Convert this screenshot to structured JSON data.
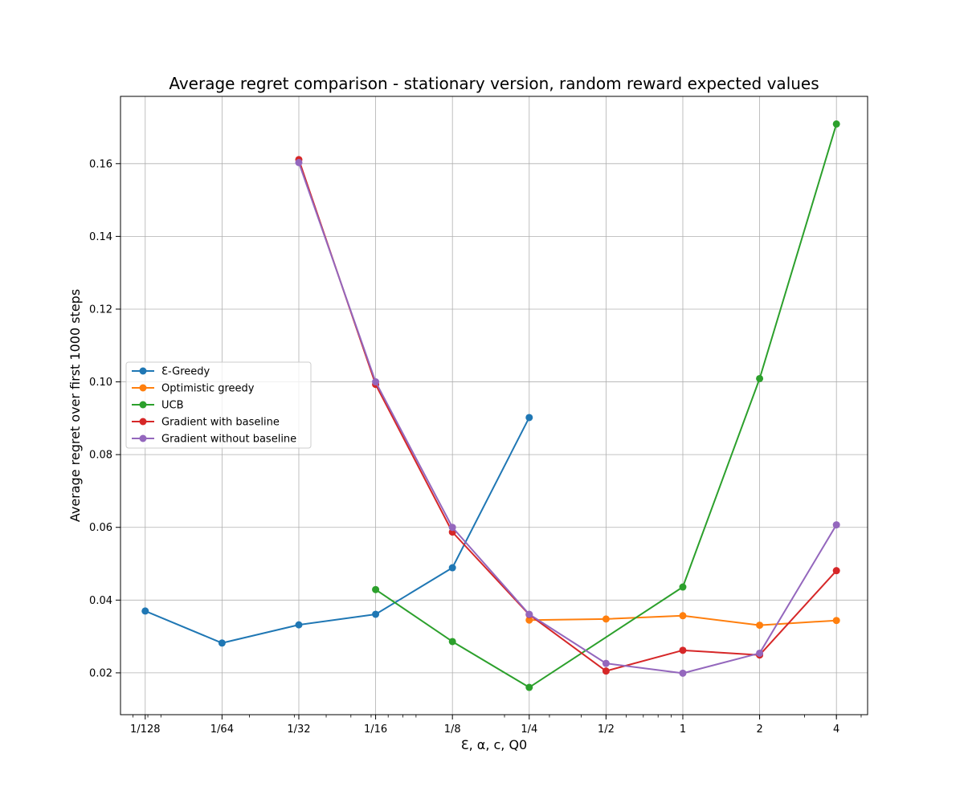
{
  "chart_data": {
    "type": "line",
    "title": "Average regret comparison - stationary version, random reward expected values",
    "xlabel": "Ɛ, α, c, Q0",
    "ylabel": "Average regret over first 1000 steps",
    "x_scale": "log2",
    "x": [
      0.0078125,
      0.015625,
      0.03125,
      0.0625,
      0.125,
      0.25,
      0.5,
      1,
      2,
      4
    ],
    "x_tick_labels": [
      "1/128",
      "1/64",
      "1/32",
      "1/16",
      "1/8",
      "1/4",
      "1/2",
      "1",
      "2",
      "4"
    ],
    "xlim": [
      0.00625,
      5.3
    ],
    "ylim": [
      0.0085,
      0.1785
    ],
    "y_ticks": [
      0.02,
      0.04,
      0.06,
      0.08,
      0.1,
      0.12,
      0.14,
      0.16
    ],
    "y_tick_labels": [
      "0.02",
      "0.04",
      "0.06",
      "0.08",
      "0.10",
      "0.12",
      "0.14",
      "0.16"
    ],
    "grid": true,
    "legend_position": "center-left",
    "series": [
      {
        "name": "Ɛ-Greedy",
        "color": "#1f77b4",
        "x": [
          0.0078125,
          0.015625,
          0.03125,
          0.0625,
          0.125,
          0.25
        ],
        "values": [
          0.037,
          0.0282,
          0.0332,
          0.0361,
          0.0489,
          0.0902
        ]
      },
      {
        "name": "Optimistic greedy",
        "color": "#ff7f0e",
        "x": [
          0.25,
          0.5,
          1,
          2,
          4
        ],
        "values": [
          0.0345,
          0.0348,
          0.0357,
          0.0331,
          0.0344
        ]
      },
      {
        "name": "UCB",
        "color": "#2ca02c",
        "x": [
          0.0625,
          0.125,
          0.25,
          1,
          2,
          4
        ],
        "values": [
          0.0429,
          0.0286,
          0.016,
          0.0436,
          0.1009,
          0.1709
        ]
      },
      {
        "name": "Gradient with baseline",
        "color": "#d62728",
        "x": [
          0.03125,
          0.0625,
          0.125,
          0.25,
          0.5,
          1,
          2,
          4
        ],
        "values": [
          0.1611,
          0.0993,
          0.0587,
          0.036,
          0.0205,
          0.0262,
          0.0249,
          0.0481
        ]
      },
      {
        "name": "Gradient without baseline",
        "color": "#9467bd",
        "x": [
          0.03125,
          0.0625,
          0.125,
          0.25,
          0.5,
          1,
          2,
          4
        ],
        "values": [
          0.1603,
          0.1,
          0.06,
          0.0361,
          0.0226,
          0.0199,
          0.0254,
          0.0607
        ]
      }
    ]
  }
}
